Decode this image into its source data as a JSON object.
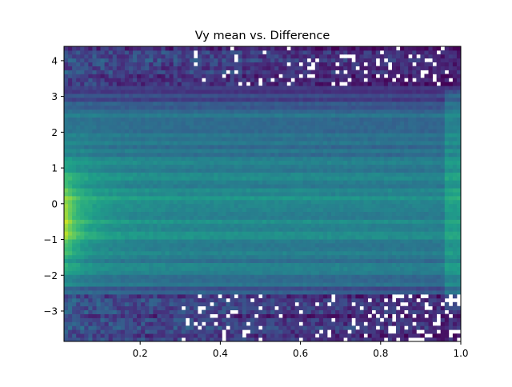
{
  "chart_data": {
    "type": "heatmap",
    "title": "Vy mean vs. Difference",
    "xlabel": "",
    "ylabel": "",
    "xlim": [
      0.01,
      1.0
    ],
    "ylim": [
      -3.85,
      4.4
    ],
    "x_ticks": [
      0.2,
      0.4,
      0.6,
      0.8,
      1.0
    ],
    "x_tick_labels": [
      "0.2",
      "0.4",
      "0.6",
      "0.8",
      "1.0"
    ],
    "y_ticks": [
      -3,
      -2,
      -1,
      0,
      1,
      2,
      3,
      4
    ],
    "y_tick_labels": [
      "−3",
      "−2",
      "−1",
      "0",
      "1",
      "2",
      "3",
      "4"
    ],
    "colormap": "viridis",
    "colorbar": false,
    "grid": false,
    "bins": {
      "x": 98,
      "y": 75
    },
    "density_features": [
      {
        "region": "peak",
        "x_range": [
          0.01,
          0.06
        ],
        "y_range": [
          -1.5,
          0.6
        ],
        "level": "high"
      },
      {
        "region": "core",
        "x_range": [
          0.01,
          0.95
        ],
        "y_range": [
          -2.3,
          1.6
        ],
        "level": "medium"
      },
      {
        "region": "upper sparse band",
        "x_range": [
          0.3,
          1.0
        ],
        "y_range": [
          3.2,
          4.4
        ],
        "level": "low, with empty bins"
      },
      {
        "region": "lower sparse band",
        "x_range": [
          0.3,
          1.0
        ],
        "y_range": [
          -3.85,
          -2.5
        ],
        "level": "low, with empty bins"
      }
    ]
  }
}
